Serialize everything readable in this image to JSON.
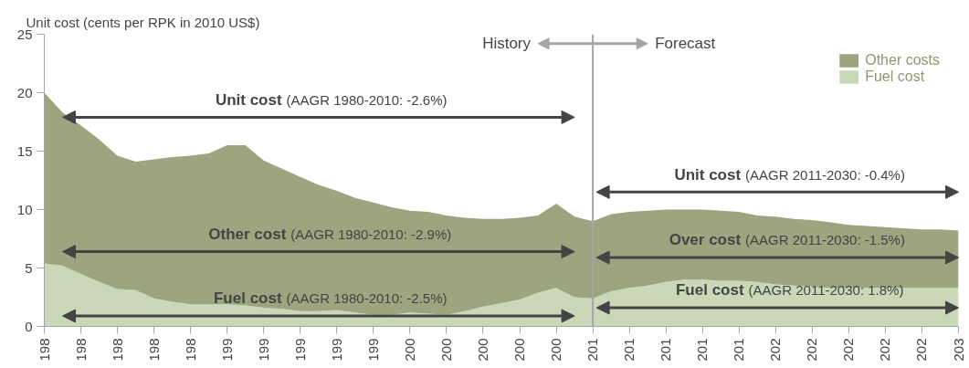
{
  "chart_data": {
    "type": "area",
    "stacked": true,
    "ylabel": "Unit cost (cents per RPK in 2010 US$)",
    "categories": [
      "198",
      null,
      "198",
      null,
      "198",
      null,
      "198",
      null,
      "198",
      null,
      "199",
      null,
      "199",
      null,
      "199",
      null,
      "199",
      null,
      "199",
      null,
      "200",
      null,
      "200",
      null,
      "200",
      null,
      "200",
      null,
      "200",
      null,
      "201",
      null,
      "201",
      null,
      "201",
      null,
      "201",
      null,
      "201",
      null,
      "202",
      null,
      "202",
      null,
      "202",
      null,
      "202",
      null,
      "202",
      null,
      "203"
    ],
    "series": [
      {
        "name": "Fuel cost",
        "color": "#c9d8b7",
        "values": [
          5.4,
          5.2,
          4.5,
          3.8,
          3.2,
          3.1,
          2.4,
          2.1,
          1.9,
          1.9,
          1.9,
          1.8,
          1.6,
          1.5,
          1.3,
          1.3,
          1.4,
          1.2,
          1.0,
          1.0,
          1.2,
          1.1,
          1.0,
          1.3,
          1.7,
          2.0,
          2.3,
          2.9,
          3.3,
          2.5,
          2.4,
          3.0,
          3.3,
          3.5,
          3.8,
          4.0,
          4.0,
          3.9,
          3.9,
          3.8,
          3.6,
          3.5,
          3.4,
          3.3,
          3.3,
          3.3,
          3.3,
          3.3,
          3.3,
          3.3,
          3.3
        ]
      },
      {
        "name": "Other costs",
        "color": "#9ca57f",
        "values": [
          14.6,
          13.1,
          12.7,
          12.2,
          11.4,
          11.0,
          11.9,
          12.4,
          12.7,
          12.9,
          13.6,
          13.7,
          12.6,
          12.0,
          11.5,
          10.8,
          10.2,
          9.8,
          9.6,
          9.2,
          8.7,
          8.7,
          8.5,
          8.0,
          7.5,
          7.2,
          7.0,
          6.6,
          7.2,
          6.9,
          6.6,
          6.6,
          6.5,
          6.4,
          6.2,
          6.0,
          6.0,
          6.0,
          5.9,
          5.7,
          5.8,
          5.7,
          5.7,
          5.6,
          5.4,
          5.3,
          5.2,
          5.1,
          5.0,
          5.0,
          4.9
        ]
      }
    ],
    "ylim": [
      0,
      25
    ],
    "yticks": [
      0,
      5,
      10,
      15,
      20,
      25
    ],
    "grid": false,
    "legend": "top right",
    "ref_lines": [
      {
        "axis": "x",
        "value": "201",
        "color": "#a6a6a6"
      }
    ],
    "annotations": [
      "History",
      "Forecast",
      "Unit cost (AAGR 1980-2010: -2.6%)",
      "Other cost (AAGR 1980-2010: -2.9%)",
      "Fuel cost (AAGR 1980-2010: -2.5%)",
      "Unit cost (AAGR 2011-2030: -0.4%)",
      "Over cost (AAGR 2011-2030: -1.5%)",
      "Fuel cost (AAGR 2011-2030: 1.8%)"
    ]
  }
}
